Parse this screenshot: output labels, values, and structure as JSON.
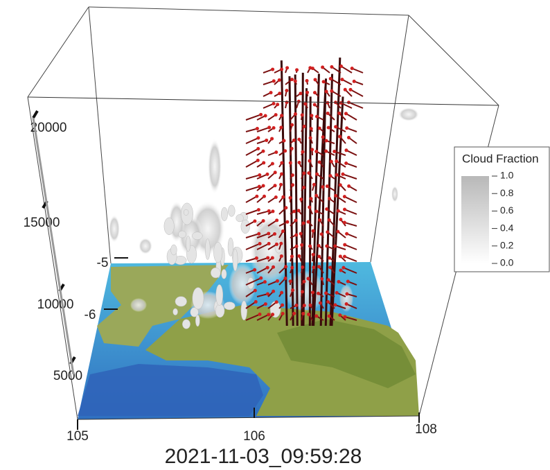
{
  "timestamp": "2021-11-03_09:59:28",
  "z_axis": {
    "ticks": [
      20000,
      15000,
      10000,
      5000
    ]
  },
  "y_axis": {
    "ticks": [
      -5,
      -6
    ]
  },
  "x_axis": {
    "ticks": [
      105,
      106,
      108
    ]
  },
  "legend": {
    "title": "Cloud Fraction",
    "ticks": [
      "1.0",
      "0.8",
      "0.6",
      "0.4",
      "0.2",
      "0.0"
    ]
  }
}
